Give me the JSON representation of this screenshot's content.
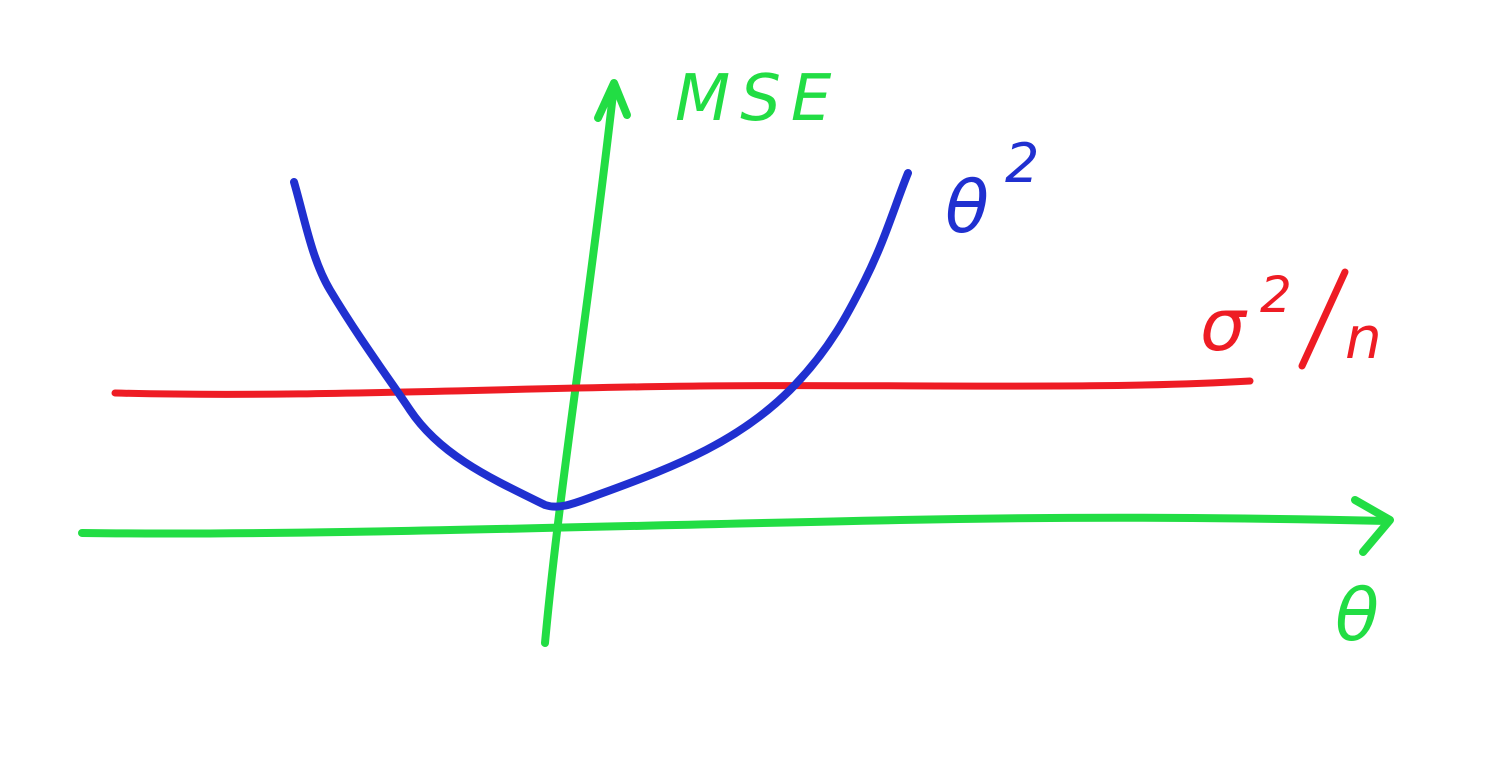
{
  "diagram": {
    "axes": {
      "y_label": "MSE",
      "x_label": "θ",
      "color": "#22dd44"
    },
    "curves": [
      {
        "name": "theta-squared-curve",
        "label_base": "θ",
        "label_sup": "2",
        "color": "#2030d0"
      },
      {
        "name": "sigma-squared-over-n-line",
        "label_base": "σ",
        "label_sup": "2",
        "label_sub": "n",
        "color": "#ee1c24"
      }
    ]
  }
}
